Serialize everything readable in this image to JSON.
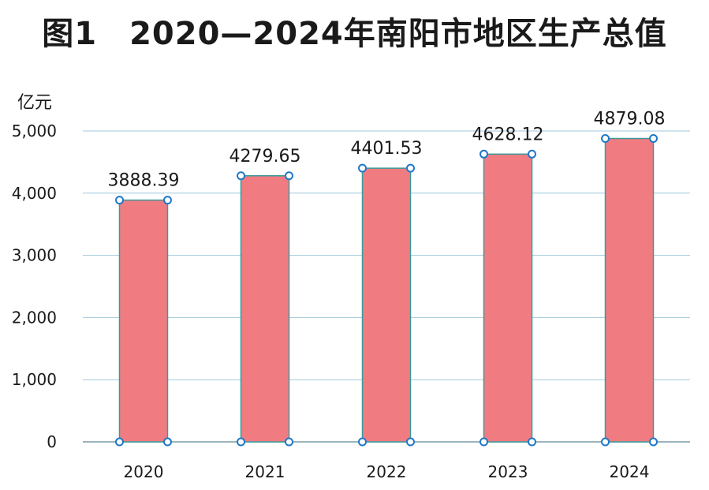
{
  "chart_data": {
    "type": "bar",
    "title": "图1　2020—2024年南阳市地区生产总值",
    "ylabel": "亿元",
    "xlabel": "",
    "categories": [
      "2020",
      "2021",
      "2022",
      "2023",
      "2024"
    ],
    "values": [
      3888.39,
      4279.65,
      4401.53,
      4628.12,
      4879.08
    ],
    "value_labels": [
      "3888.39",
      "4279.65",
      "4401.53",
      "4628.12",
      "4879.08"
    ],
    "ylim": [
      0,
      5000
    ],
    "yticks": [
      0,
      1000,
      2000,
      3000,
      4000,
      5000
    ],
    "ytick_labels": [
      "0",
      "1,000",
      "2,000",
      "3,000",
      "4,000",
      "5,000"
    ],
    "grid": true,
    "colors": {
      "bar": "#f07c82",
      "bar_edge": "#3a9a9a",
      "grid": "#9fc8dc",
      "handle": "#1f78c8"
    }
  }
}
